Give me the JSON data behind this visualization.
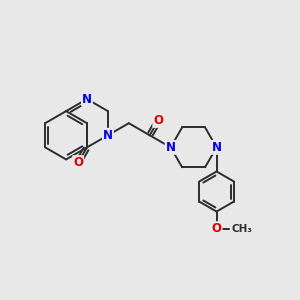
{
  "bg_color": "#e8e8e8",
  "bond_color": "#2d2d2d",
  "N_color": "#0000ee",
  "O_color": "#dd0000",
  "bond_width": 1.4,
  "figsize": [
    3.0,
    3.0
  ],
  "dpi": 100,
  "xlim": [
    0,
    10
  ],
  "ylim": [
    0,
    10
  ]
}
